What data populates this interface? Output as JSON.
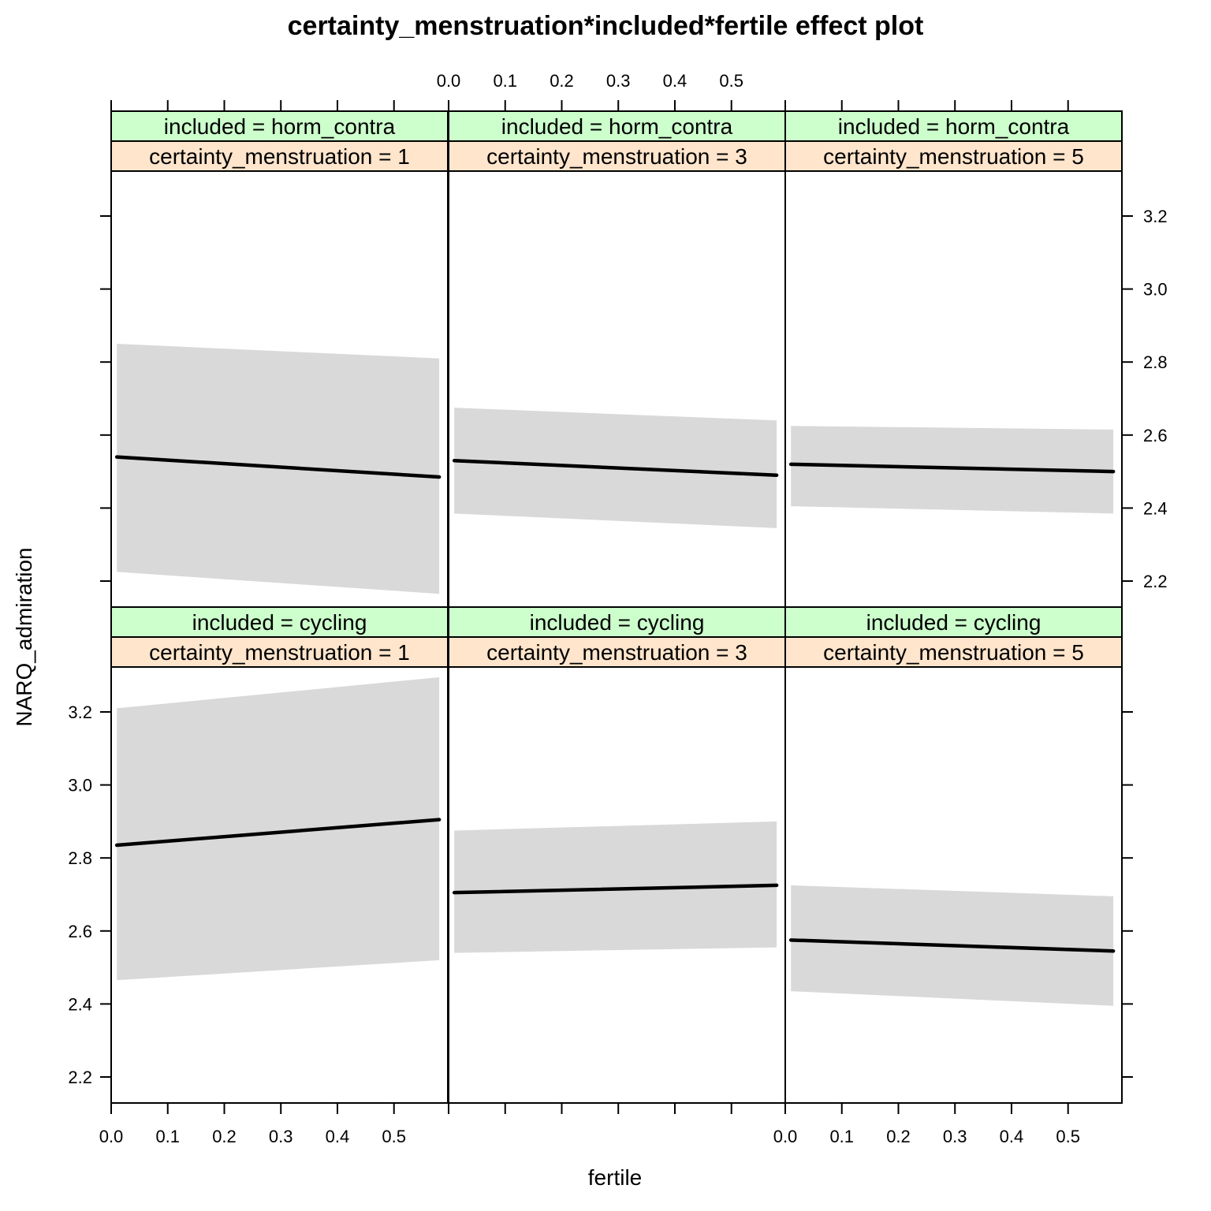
{
  "chart_data": {
    "type": "line",
    "title": "certainty_menstruation*included*fertile effect plot",
    "xlabel": "fertile",
    "ylabel": "NARQ_admiration",
    "xlim": [
      0.0,
      0.59
    ],
    "ylim": [
      2.12,
      3.32
    ],
    "x_ticks": [
      "0.0",
      "0.1",
      "0.2",
      "0.3",
      "0.4",
      "0.5"
    ],
    "y_ticks": [
      "2.2",
      "2.4",
      "2.6",
      "2.8",
      "3.0",
      "3.2"
    ],
    "band_color": "#d9d9d9",
    "line_color": "#000000",
    "strip_colors": {
      "included": "#ccffcc",
      "certainty": "#ffe5cc"
    },
    "panels": [
      {
        "included": "included = horm_contra",
        "certainty": "certainty_menstruation = 1",
        "x": [
          0.01,
          0.58
        ],
        "fit": [
          2.54,
          2.485
        ],
        "lower": [
          2.225,
          2.165
        ],
        "upper": [
          2.85,
          2.81
        ]
      },
      {
        "included": "included = horm_contra",
        "certainty": "certainty_menstruation = 3",
        "x": [
          0.01,
          0.58
        ],
        "fit": [
          2.53,
          2.49
        ],
        "lower": [
          2.385,
          2.345
        ],
        "upper": [
          2.675,
          2.64
        ]
      },
      {
        "included": "included = horm_contra",
        "certainty": "certainty_menstruation = 5",
        "x": [
          0.01,
          0.58
        ],
        "fit": [
          2.52,
          2.5
        ],
        "lower": [
          2.405,
          2.385
        ],
        "upper": [
          2.625,
          2.615
        ]
      },
      {
        "included": "included = cycling",
        "certainty": "certainty_menstruation = 1",
        "x": [
          0.01,
          0.58
        ],
        "fit": [
          2.835,
          2.905
        ],
        "lower": [
          2.465,
          2.52
        ],
        "upper": [
          3.21,
          3.295
        ]
      },
      {
        "included": "included = cycling",
        "certainty": "certainty_menstruation = 3",
        "x": [
          0.01,
          0.58
        ],
        "fit": [
          2.705,
          2.725
        ],
        "lower": [
          2.54,
          2.555
        ],
        "upper": [
          2.875,
          2.9
        ]
      },
      {
        "included": "included = cycling",
        "certainty": "certainty_menstruation = 5",
        "x": [
          0.01,
          0.58
        ],
        "fit": [
          2.575,
          2.545
        ],
        "lower": [
          2.435,
          2.395
        ],
        "upper": [
          2.725,
          2.695
        ]
      }
    ]
  }
}
